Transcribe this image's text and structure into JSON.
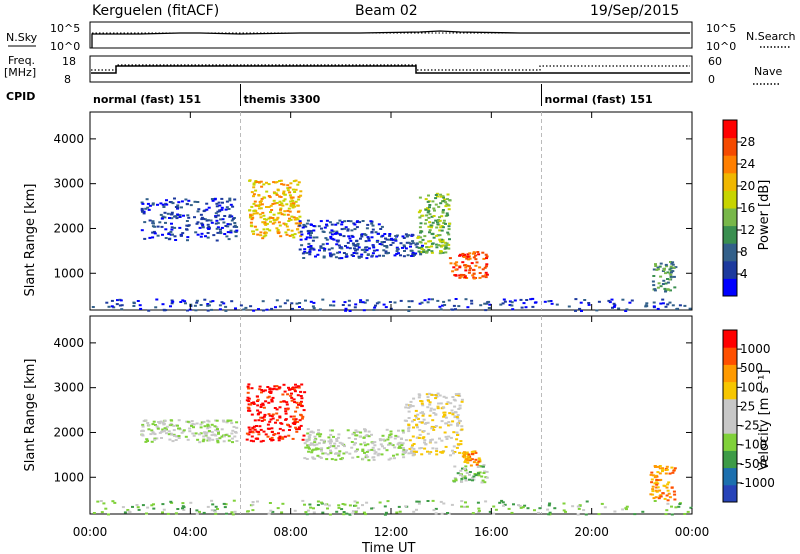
{
  "header": {
    "station": "Kerguelen (fitACF)",
    "beam": "Beam 02",
    "date": "19/Sep/2015"
  },
  "top_panels": {
    "nsky_label": "N.Sky",
    "nsearch_label": "N.Search",
    "freq_label_1": "Freq.",
    "freq_label_2": "[MHz]",
    "nave_label": "Nave",
    "cpid_label": "CPID",
    "noise_ticks": [
      "10^5",
      "10^0"
    ],
    "freq_ticks": [
      "18",
      "8"
    ],
    "nave_ticks": [
      "60",
      "0"
    ]
  },
  "cpid_segments": [
    {
      "label": "normal (fast) 151",
      "start_h": 0,
      "end_h": 6
    },
    {
      "label": "themis 3300",
      "start_h": 6,
      "end_h": 18
    },
    {
      "label": "normal (fast) 151",
      "start_h": 18,
      "end_h": 24
    }
  ],
  "axes": {
    "x_ticks": [
      "00:00",
      "04:00",
      "08:00",
      "12:00",
      "16:00",
      "20:00",
      "00:00"
    ],
    "x_label": "Time UT",
    "y_label": "Slant Range [km]",
    "y_ticks": [
      "4000",
      "3000",
      "2000",
      "1000"
    ]
  },
  "colorbars": {
    "power": {
      "label": "Power [dB]",
      "ticks": [
        "28",
        "24",
        "20",
        "16",
        "12",
        "8",
        "4"
      ],
      "colors": [
        "#0000ff",
        "#1d3a9e",
        "#33608a",
        "#3a8f50",
        "#78b74a",
        "#c7d400",
        "#f0b700",
        "#ff7f00",
        "#f54a00",
        "#ff0000"
      ]
    },
    "velocity": {
      "label": "Velocity [m s⁻¹]",
      "ticks": [
        "1000",
        "500",
        "100",
        "25",
        "-25",
        "-100",
        "-500",
        "-1000"
      ],
      "colors": [
        "#2743b8",
        "#1c6fae",
        "#3d9b47",
        "#80d13a",
        "#c8c8c8",
        "#c8c8c8",
        "#f7c600",
        "#ff9a00",
        "#ff5000",
        "#ff0000"
      ]
    }
  },
  "chart_data": {
    "type": "heatmap",
    "x_range_hours": [
      0,
      24
    ],
    "y_range_km": [
      180,
      4600
    ],
    "panels": [
      {
        "name": "power",
        "colorbar": "power",
        "clusters": [
          {
            "t0": 2.0,
            "t1": 5.8,
            "r0": 1750,
            "r1": 2700,
            "level": 1
          },
          {
            "t0": 6.3,
            "t1": 8.4,
            "r0": 1800,
            "r1": 3100,
            "level": 6
          },
          {
            "t0": 8.3,
            "t1": 11.6,
            "r0": 1350,
            "r1": 2200,
            "level": 1
          },
          {
            "t0": 11.6,
            "t1": 13.2,
            "r0": 1400,
            "r1": 1900,
            "level": 1
          },
          {
            "t0": 13.0,
            "t1": 14.3,
            "r0": 1450,
            "r1": 2800,
            "level": 4
          },
          {
            "t0": 14.3,
            "t1": 15.8,
            "r0": 900,
            "r1": 1500,
            "level": 8
          },
          {
            "t0": 22.4,
            "t1": 23.3,
            "r0": 600,
            "r1": 1300,
            "level": 3
          },
          {
            "t0": 0.0,
            "t1": 24.0,
            "r0": 180,
            "r1": 450,
            "level": 1
          }
        ]
      },
      {
        "name": "velocity",
        "colorbar": "velocity",
        "clusters": [
          {
            "t0": 2.0,
            "t1": 5.8,
            "r0": 1800,
            "r1": 2300,
            "level": 4
          },
          {
            "t0": 6.2,
            "t1": 8.5,
            "r0": 1800,
            "r1": 3100,
            "level": 9
          },
          {
            "t0": 8.5,
            "t1": 12.5,
            "r0": 1400,
            "r1": 2100,
            "level": 4
          },
          {
            "t0": 12.5,
            "t1": 14.8,
            "r0": 1500,
            "r1": 2900,
            "level": 5
          },
          {
            "t0": 14.4,
            "t1": 15.8,
            "r0": 900,
            "r1": 1300,
            "level": 3
          },
          {
            "t0": 14.8,
            "t1": 15.5,
            "r0": 1250,
            "r1": 1600,
            "level": 7
          },
          {
            "t0": 22.3,
            "t1": 23.3,
            "r0": 500,
            "r1": 1300,
            "level": 7
          },
          {
            "t0": 0.0,
            "t1": 24.0,
            "r0": 180,
            "r1": 500,
            "level": 3
          }
        ]
      }
    ]
  }
}
